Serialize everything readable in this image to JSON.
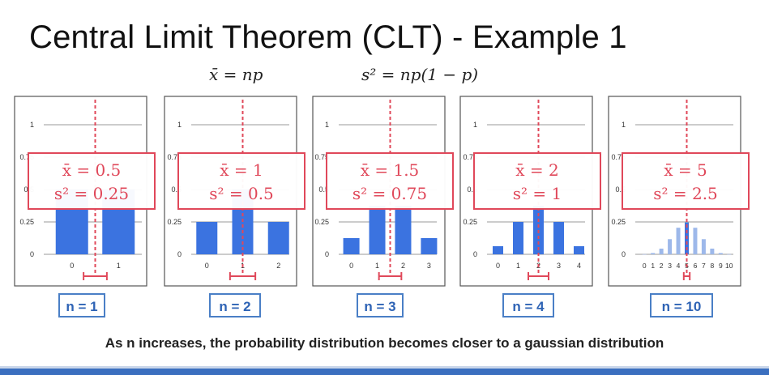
{
  "title": "Central Limit Theorem (CLT) - Example 1",
  "formulas": {
    "mean": "x̄ = np",
    "variance": "s² = np(1 − p)"
  },
  "caption": "As n increases, the probability distribution becomes closer to a gaussian distribution",
  "colors": {
    "bar": "#3b73e0",
    "highlight": "#e0485a",
    "nbox_border": "#4a7fc6",
    "nbox_text": "#2e63b5"
  },
  "chart_data": [
    {
      "type": "bar",
      "x": [
        0,
        1
      ],
      "values": [
        0.5,
        0.5
      ],
      "ytick_labels": [
        "0",
        "0.25",
        "0.5",
        "0.75",
        "1"
      ],
      "xtick_labels": [
        "0",
        "1"
      ],
      "ylim": [
        0,
        1
      ],
      "mean": 0.5,
      "annotation": {
        "mean_label": "x̄ = 0.5",
        "var_label": "s² = 0.25"
      },
      "n_label": "n = 1"
    },
    {
      "type": "bar",
      "x": [
        0,
        1,
        2
      ],
      "values": [
        0.25,
        0.5,
        0.25
      ],
      "ytick_labels": [
        "0",
        "0.25",
        "0.5",
        "0.75",
        "1"
      ],
      "xtick_labels": [
        "0",
        "1",
        "2"
      ],
      "ylim": [
        0,
        1
      ],
      "mean": 1,
      "annotation": {
        "mean_label": "x̄ = 1",
        "var_label": "s² = 0.5"
      },
      "n_label": "n = 2"
    },
    {
      "type": "bar",
      "x": [
        0,
        1,
        2,
        3
      ],
      "values": [
        0.125,
        0.375,
        0.375,
        0.125
      ],
      "ytick_labels": [
        "0",
        "0.25",
        "0.5",
        "0.75",
        "1"
      ],
      "xtick_labels": [
        "0",
        "1",
        "2",
        "3"
      ],
      "ylim": [
        0,
        1
      ],
      "mean": 1.5,
      "annotation": {
        "mean_label": "x̄ = 1.5",
        "var_label": "s² = 0.75"
      },
      "n_label": "n = 3"
    },
    {
      "type": "bar",
      "x": [
        0,
        1,
        2,
        3,
        4
      ],
      "values": [
        0.0625,
        0.25,
        0.375,
        0.25,
        0.0625
      ],
      "ytick_labels": [
        "0",
        "0.25",
        "0.5",
        "0.75",
        "1"
      ],
      "xtick_labels": [
        "0",
        "1",
        "2",
        "3",
        "4"
      ],
      "ylim": [
        0,
        1
      ],
      "mean": 2,
      "annotation": {
        "mean_label": "x̄ = 2",
        "var_label": "s² = 1"
      },
      "n_label": "n = 4"
    },
    {
      "type": "bar",
      "x": [
        0,
        1,
        2,
        3,
        4,
        5,
        6,
        7,
        8,
        9,
        10
      ],
      "values": [
        0.001,
        0.01,
        0.044,
        0.117,
        0.205,
        0.246,
        0.205,
        0.117,
        0.044,
        0.01,
        0.001
      ],
      "ytick_labels": [
        "0",
        "0.25",
        "0.5",
        "0.75",
        "1"
      ],
      "xtick_labels": [
        "0",
        "1",
        "2",
        "3",
        "4",
        "5",
        "6",
        "7",
        "8",
        "9",
        "10"
      ],
      "ylim": [
        0,
        1
      ],
      "mean": 5,
      "annotation": {
        "mean_label": "x̄ = 5",
        "var_label": "s² = 2.5"
      },
      "n_label": "n = 10"
    }
  ]
}
